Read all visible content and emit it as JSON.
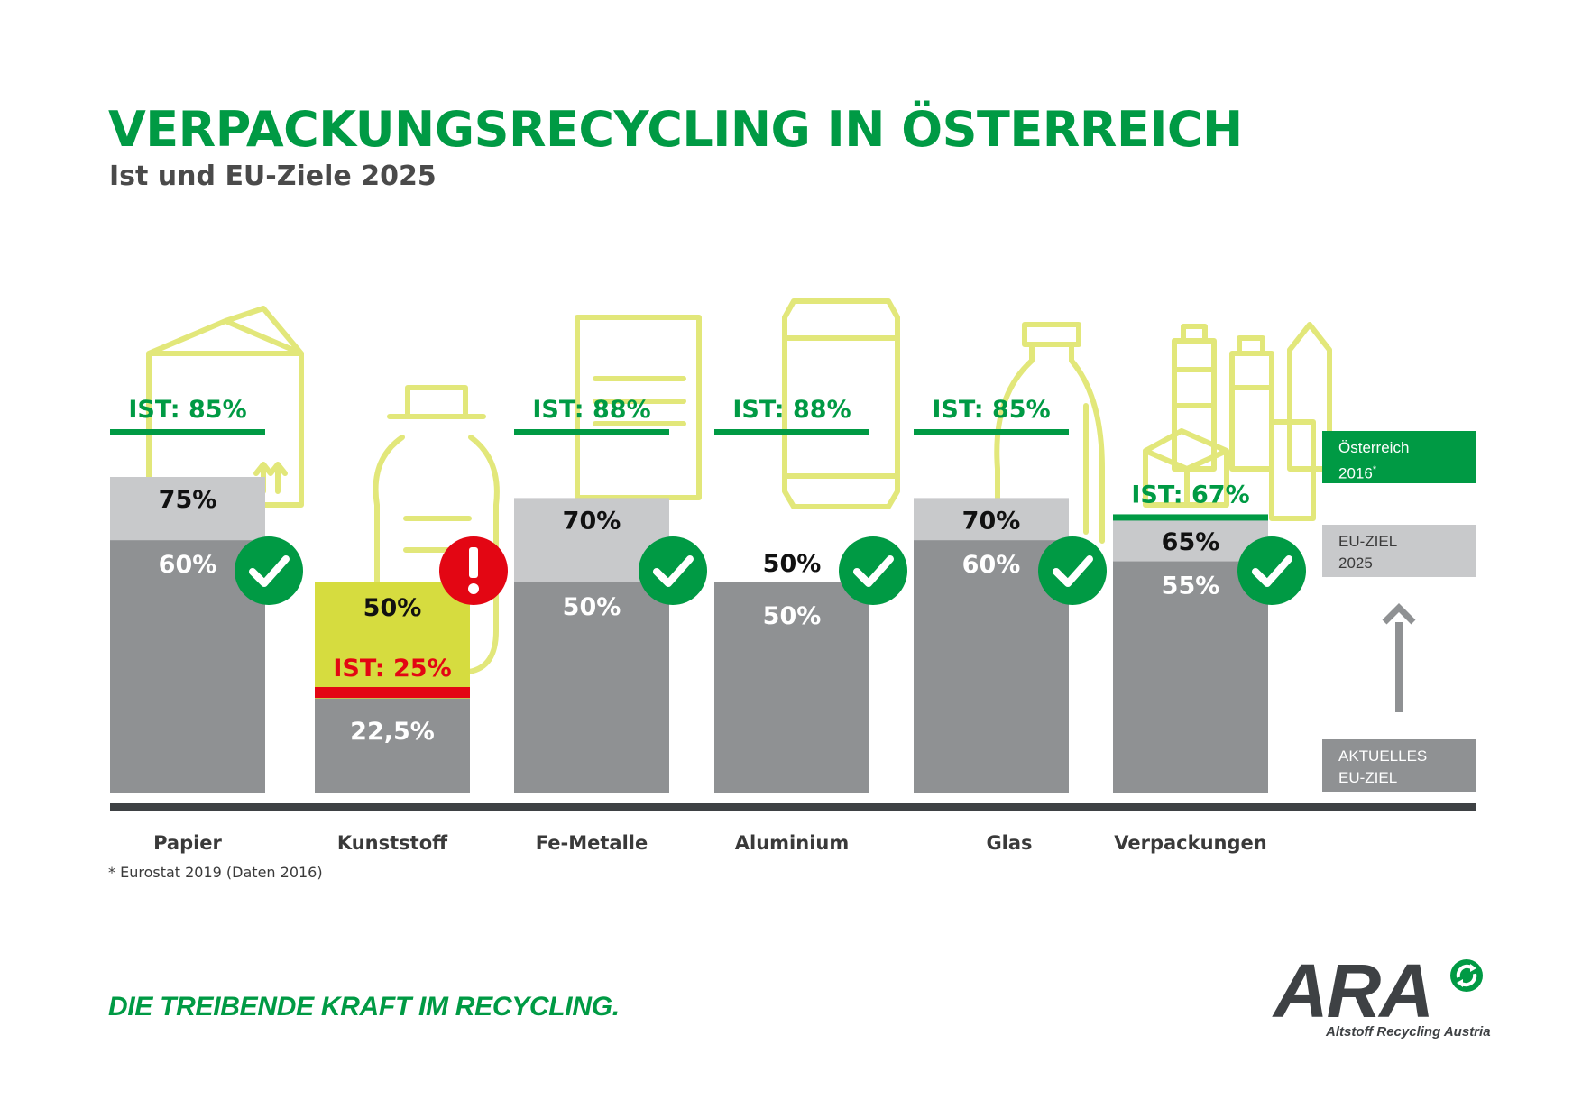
{
  "header": {
    "title": "VERPACKUNGSRECYCLING IN ÖSTERREICH",
    "subtitle": "Ist und EU-Ziele 2025"
  },
  "legend": {
    "ist_line1": "Österreich",
    "ist_line2": "2016",
    "ist_sup": "*",
    "eu_line1": "EU-ZIEL",
    "eu_line2": "2025",
    "current_line1": "AKTUELLES",
    "current_line2": "EU-ZIEL"
  },
  "footnote": "* Eurostat 2019 (Daten 2016)",
  "footer": {
    "slogan": "DIE TREIBENDE KRAFT IM RECYCLING.",
    "logo_text": "ARA",
    "logo_subtitle": "Altstoff Recycling Austria"
  },
  "colors": {
    "green": "#009a44",
    "red": "#e30613",
    "current_target": "#8f9193",
    "eu_target_2025": "#c8c9cb",
    "plastic_highlight": "#d6dc3f",
    "icon_outline": "#e2e77a",
    "baseline": "#3e4144"
  },
  "chart_data": {
    "type": "bar",
    "title": "VERPACKUNGSRECYCLING IN ÖSTERREICH",
    "subtitle": "Ist und EU-Ziele 2025",
    "ylim": [
      0,
      100
    ],
    "categories": [
      "Papier",
      "Kunststoff",
      "Fe-Metalle",
      "Aluminium",
      "Glas",
      "Verpackungen"
    ],
    "series": [
      {
        "name": "AKTUELLES EU-ZIEL",
        "values": [
          60,
          22.5,
          50,
          50,
          60,
          55
        ],
        "labels": [
          "60%",
          "22,5%",
          "50%",
          "50%",
          "60%",
          "55%"
        ]
      },
      {
        "name": "EU-ZIEL 2025",
        "values": [
          75,
          50,
          70,
          50,
          70,
          65
        ],
        "labels": [
          "75%",
          "50%",
          "70%",
          "50%",
          "70%",
          "65%"
        ]
      },
      {
        "name": "Österreich 2016*",
        "values": [
          85,
          25,
          88,
          88,
          85,
          67
        ],
        "labels": [
          "IST: 85%",
          "IST: 25%",
          "IST: 88%",
          "IST: 88%",
          "IST: 85%",
          "IST: 67%"
        ]
      }
    ],
    "status": [
      "check",
      "warning",
      "check",
      "check",
      "check",
      "check"
    ],
    "icons": [
      "paper-carton-icon",
      "plastic-bottle-icon",
      "food-can-icon",
      "beverage-can-icon",
      "glass-bottle-icon",
      "mixed-packaging-icon"
    ],
    "legend_position": "right",
    "grid": false
  }
}
